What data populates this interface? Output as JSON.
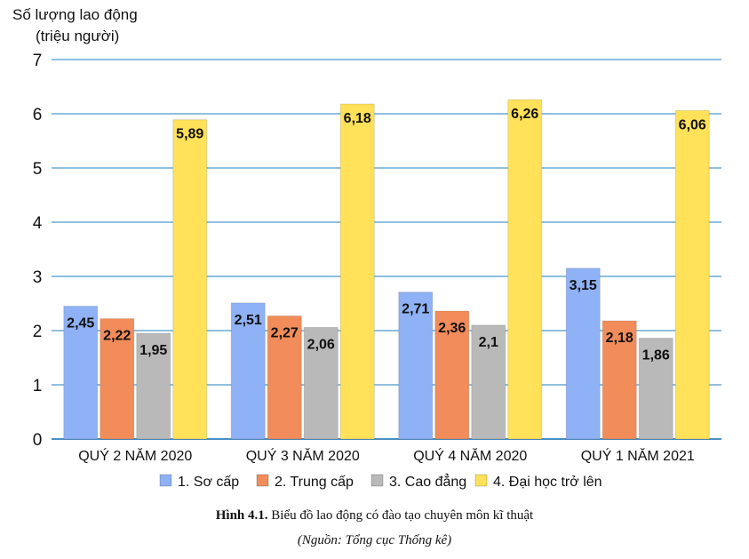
{
  "chart_data": {
    "type": "bar",
    "ylabel_line1": "Số lượng lao động",
    "ylabel_line2": "(triệu người)",
    "ylim": [
      0,
      7
    ],
    "yticks": [
      "0",
      "1",
      "2",
      "3",
      "4",
      "5",
      "6",
      "7"
    ],
    "grid": true,
    "legend_position": "bottom",
    "categories": [
      "QUÝ 2 NĂM 2020",
      "QUÝ 3 NĂM 2020",
      "QUÝ 4 NĂM 2020",
      "QUÝ 1 NĂM 2021"
    ],
    "series": [
      {
        "name": "1. Sơ cấp",
        "color": "#8fb1f5",
        "values": [
          2.45,
          2.51,
          2.71,
          3.15
        ],
        "labels": [
          "2,45",
          "2,51",
          "2,71",
          "3,15"
        ]
      },
      {
        "name": "2. Trung cấp",
        "color": "#f28c5a",
        "values": [
          2.22,
          2.27,
          2.36,
          2.18
        ],
        "labels": [
          "2,22",
          "2,27",
          "2,36",
          "2,18"
        ]
      },
      {
        "name": "3. Cao đẳng",
        "color": "#b9b9b9",
        "values": [
          1.95,
          2.06,
          2.1,
          1.86
        ],
        "labels": [
          "1,95",
          "2,06",
          "2,1",
          "1,86"
        ]
      },
      {
        "name": "4. Đại học trở lên",
        "color": "#ffe15a",
        "values": [
          5.89,
          6.18,
          6.26,
          6.06
        ],
        "labels": [
          "5,89",
          "6,18",
          "6,26",
          "6,06"
        ]
      }
    ],
    "gridline_color": "#6aaad6"
  },
  "caption": {
    "figure_label": "Hình 4.1.",
    "title": "Biểu đồ lao động có đào tạo chuyên môn kĩ thuật",
    "source": "(Nguồn: Tổng cục Thống kê)"
  }
}
